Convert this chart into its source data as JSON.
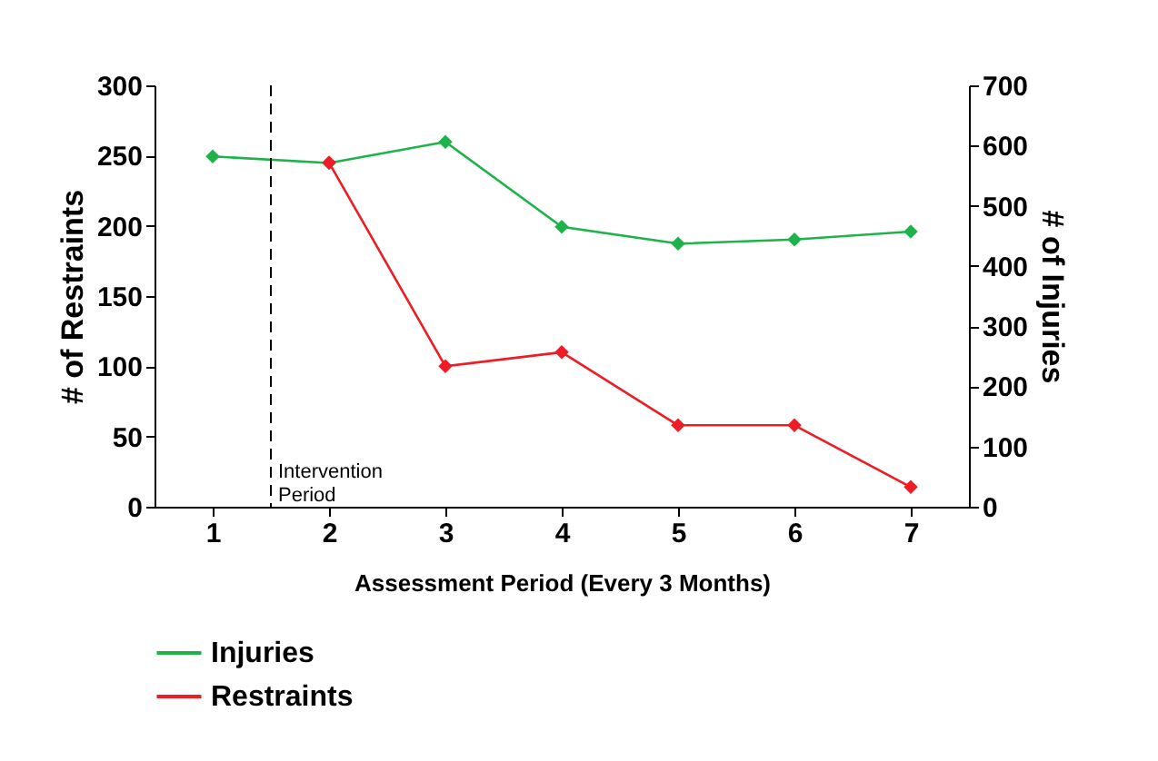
{
  "chart_data": {
    "type": "line",
    "xlabel": "Assessment Period (Every 3 Months)",
    "ylabel": "# of Restraints",
    "y2label": "# of Injuries",
    "x": [
      1,
      2,
      3,
      4,
      5,
      6,
      7
    ],
    "xlim": [
      0.5,
      7.5
    ],
    "xticks": [
      1,
      2,
      3,
      4,
      5,
      6,
      7
    ],
    "ylim": [
      0,
      300
    ],
    "yticks": [
      0,
      50,
      100,
      150,
      200,
      250,
      300
    ],
    "y2lim": [
      0,
      700
    ],
    "y2ticks": [
      0,
      100,
      200,
      300,
      400,
      500,
      600,
      700
    ],
    "series": [
      {
        "name": "Injuries",
        "color": "#1db34a",
        "axis": "y2",
        "values": [
          582,
          571,
          606,
          465,
          437,
          444,
          457
        ]
      },
      {
        "name": "Restraints",
        "color": "#ee1c24",
        "x": [
          2,
          3,
          4,
          5,
          6,
          7
        ],
        "values": [
          245,
          100,
          110,
          58,
          58,
          14
        ]
      }
    ],
    "ref_lines": [
      {
        "axis": "x",
        "value": 1.5,
        "label": "Intervention Period",
        "line_style": "dashed",
        "color": "#000000"
      }
    ],
    "marker": "diamond",
    "line_style": "solid",
    "grid": false,
    "legend": "bottom"
  }
}
